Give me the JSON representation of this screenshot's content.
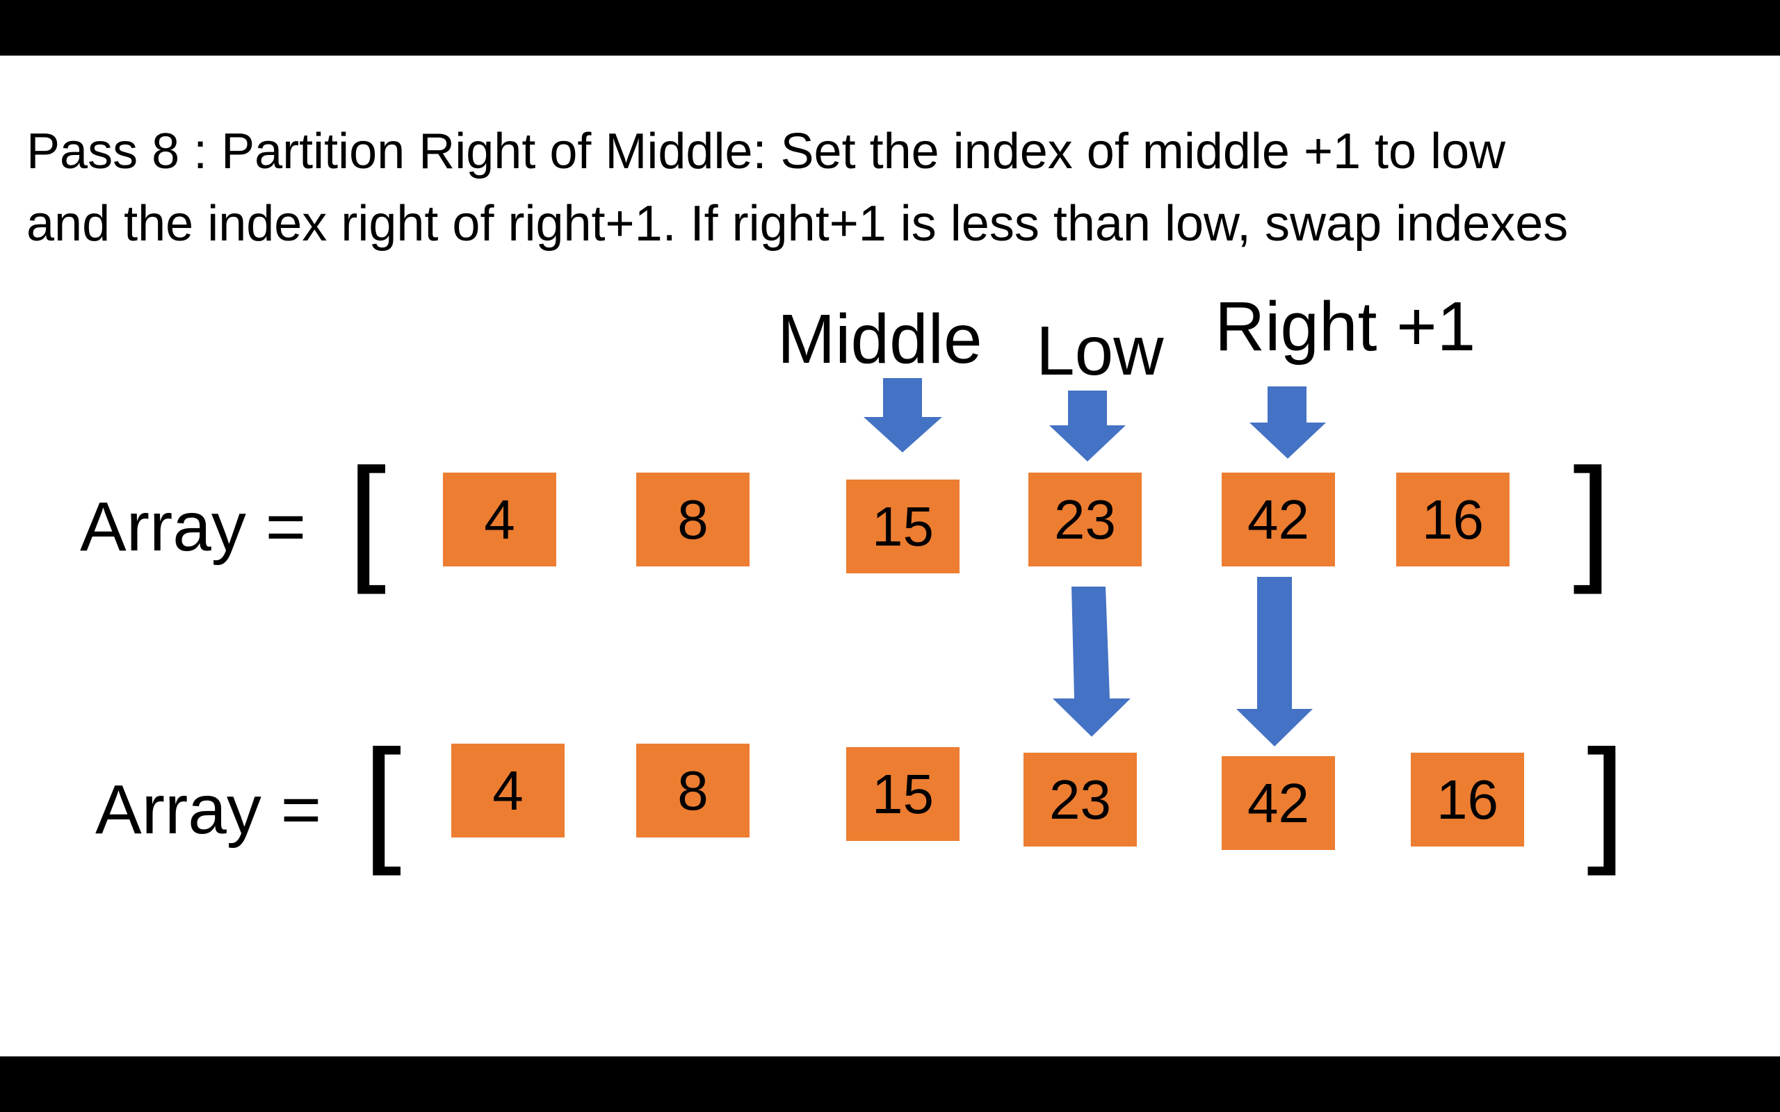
{
  "title": {
    "line1": "Pass 8 : Partition Right of Middle: Set the index of middle +1 to low",
    "line2": "and the index right of right+1. If right+1 is less than low, swap indexes"
  },
  "pointers": {
    "middle": "Middle",
    "low": "Low",
    "right_plus_one": "Right +1"
  },
  "arrays": [
    {
      "label": "Array =",
      "open_bracket": "[",
      "close_bracket": "]",
      "values": [
        "4",
        "8",
        "15",
        "23",
        "42",
        "16"
      ]
    },
    {
      "label": "Array =",
      "open_bracket": "[",
      "close_bracket": "]",
      "values": [
        "4",
        "8",
        "15",
        "23",
        "42",
        "16"
      ]
    }
  ],
  "colors": {
    "cell_fill": "#ED7D31",
    "arrow_fill": "#4472C4",
    "background": "#FFFFFF",
    "letterbox": "#000000"
  },
  "icons": {
    "pointer_arrow": "down-arrow-icon"
  }
}
